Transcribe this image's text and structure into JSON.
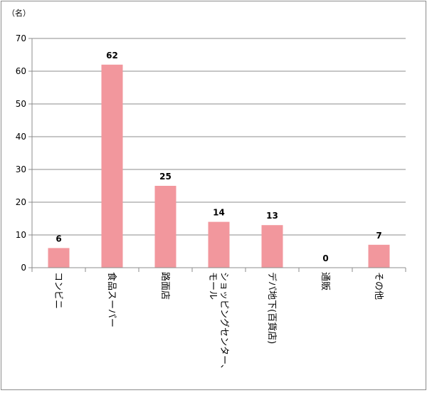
{
  "chart_data": {
    "type": "bar",
    "unit_label": "（名）",
    "categories": [
      "コンビニ",
      "食品スーパー",
      "路面店",
      "ショッピングセンター、モール",
      "デパ地下(百貨店)",
      "通販",
      "その他"
    ],
    "category_display": [
      [
        "コンビニ"
      ],
      [
        "食品スーパー"
      ],
      [
        "路面店"
      ],
      [
        "ショッピングセンター、",
        "モール"
      ],
      [
        "デパ地下(百貨店)"
      ],
      [
        "通販"
      ],
      [
        "その他"
      ]
    ],
    "values": [
      6,
      62,
      25,
      14,
      13,
      0,
      7
    ],
    "data_labels": [
      "6",
      "62",
      "25",
      "14",
      "13",
      "0",
      "7"
    ],
    "yticks": [
      "0",
      "10",
      "20",
      "30",
      "40",
      "50",
      "60",
      "70"
    ],
    "ylim": [
      0,
      70
    ],
    "grid": true,
    "bar_color": "#f2979d",
    "grid_color": "#8c8c8c"
  }
}
